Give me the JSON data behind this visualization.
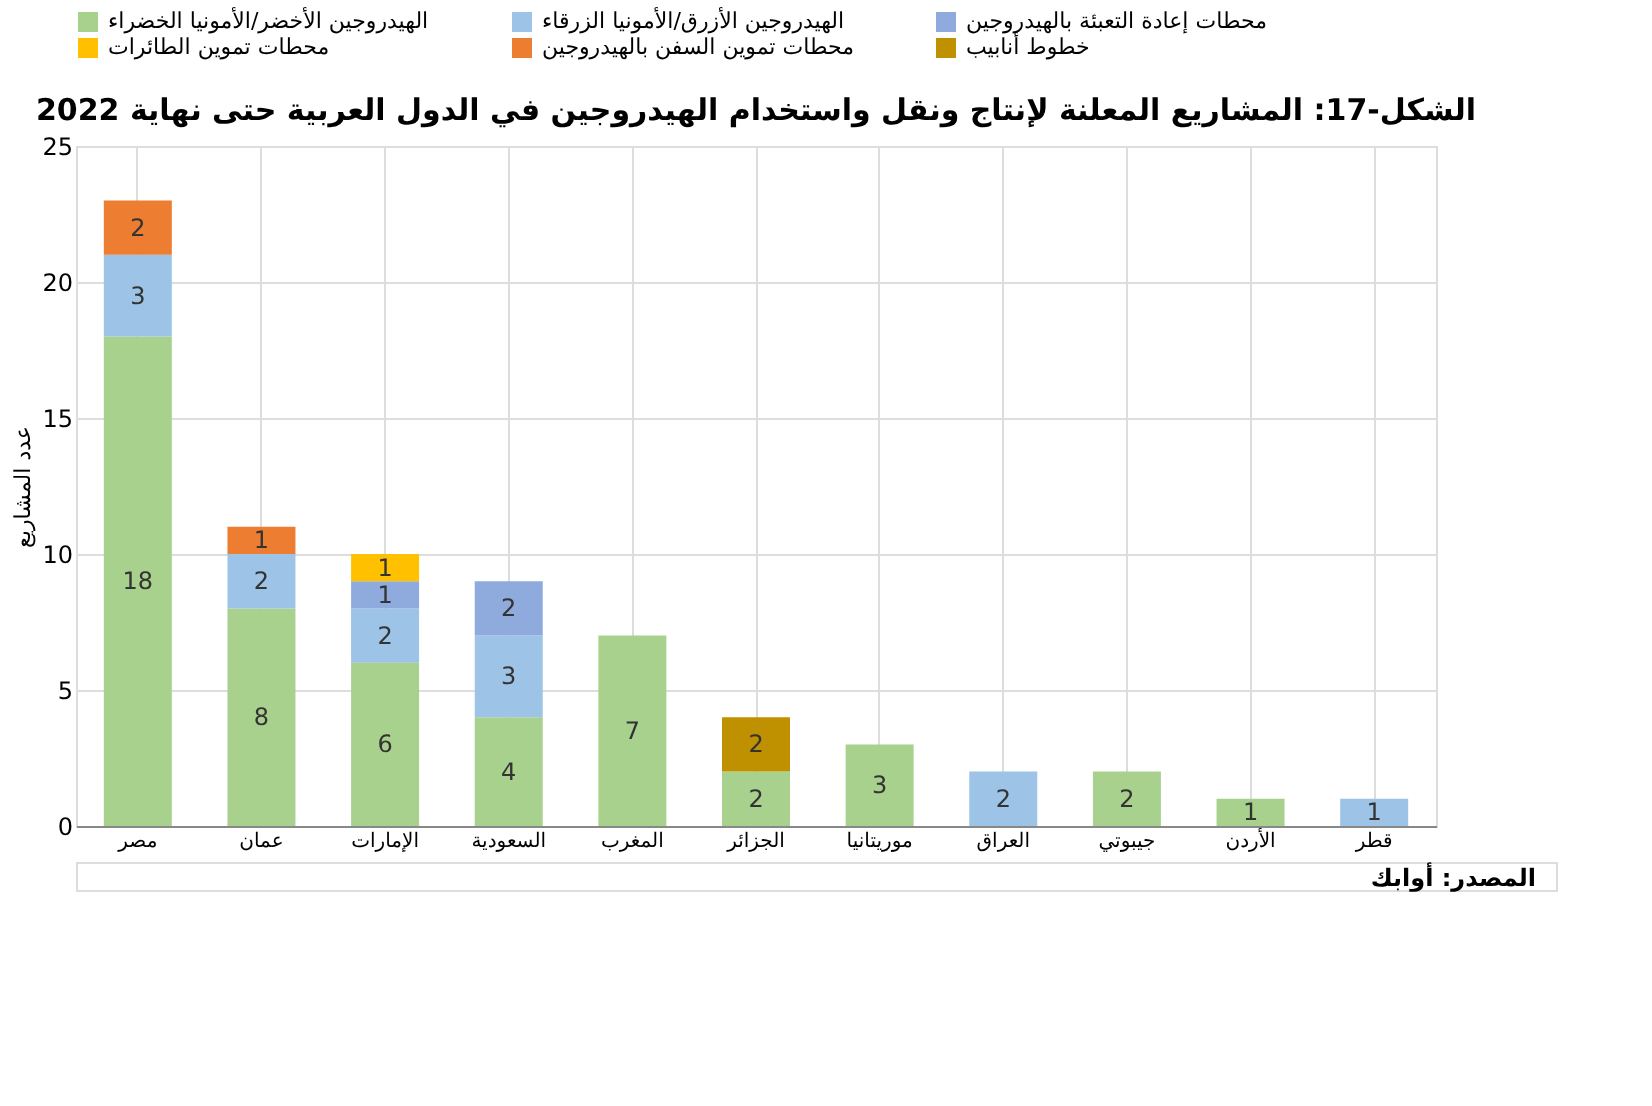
{
  "chart_data": {
    "type": "bar",
    "stacked": true,
    "title": "الشكل-17: المشاريع المعلنة لإنتاج ونقل واستخدام الهيدروجين في الدول العربية حتى نهاية 2022",
    "ylabel": "عدد المشاريع",
    "categories": [
      "مصر",
      "عمان",
      "الإمارات",
      "السعودية",
      "المغرب",
      "الجزائر",
      "موريتانيا",
      "العراق",
      "جيبوتي",
      "الأردن",
      "قطر"
    ],
    "series": [
      {
        "name": "الهيدروجين الأخضر/الأمونيا الخضراء",
        "color": "#a9d18e",
        "values": [
          18,
          8,
          6,
          4,
          7,
          2,
          3,
          null,
          2,
          1,
          null
        ]
      },
      {
        "name": "الهيدروجين الأزرق/الأمونيا الزرقاء",
        "color": "#9dc3e6",
        "values": [
          3,
          2,
          2,
          3,
          null,
          null,
          null,
          2,
          null,
          null,
          1
        ]
      },
      {
        "name": "محطات إعادة التعبئة بالهيدروجين",
        "color": "#8faadc",
        "values": [
          null,
          null,
          1,
          2,
          null,
          null,
          null,
          null,
          null,
          null,
          null
        ]
      },
      {
        "name": "محطات تموين الطائرات",
        "color": "#ffc000",
        "values": [
          null,
          null,
          1,
          null,
          null,
          null,
          null,
          null,
          null,
          null,
          null
        ]
      },
      {
        "name": "محطات تموين السفن بالهيدروجين",
        "color": "#ed7d31",
        "values": [
          2,
          1,
          null,
          null,
          null,
          null,
          null,
          null,
          null,
          null,
          null
        ]
      },
      {
        "name": "خطوط أنابيب",
        "color": "#bf9000",
        "values": [
          null,
          null,
          null,
          null,
          null,
          2,
          null,
          null,
          null,
          null,
          null
        ]
      }
    ],
    "ylim": [
      0,
      25
    ],
    "yticks": [
      0,
      5,
      10,
      15,
      20,
      25
    ],
    "grid": true,
    "legend": "top",
    "data_labels": true,
    "annotations": [
      "المصدر: أوابك"
    ]
  }
}
